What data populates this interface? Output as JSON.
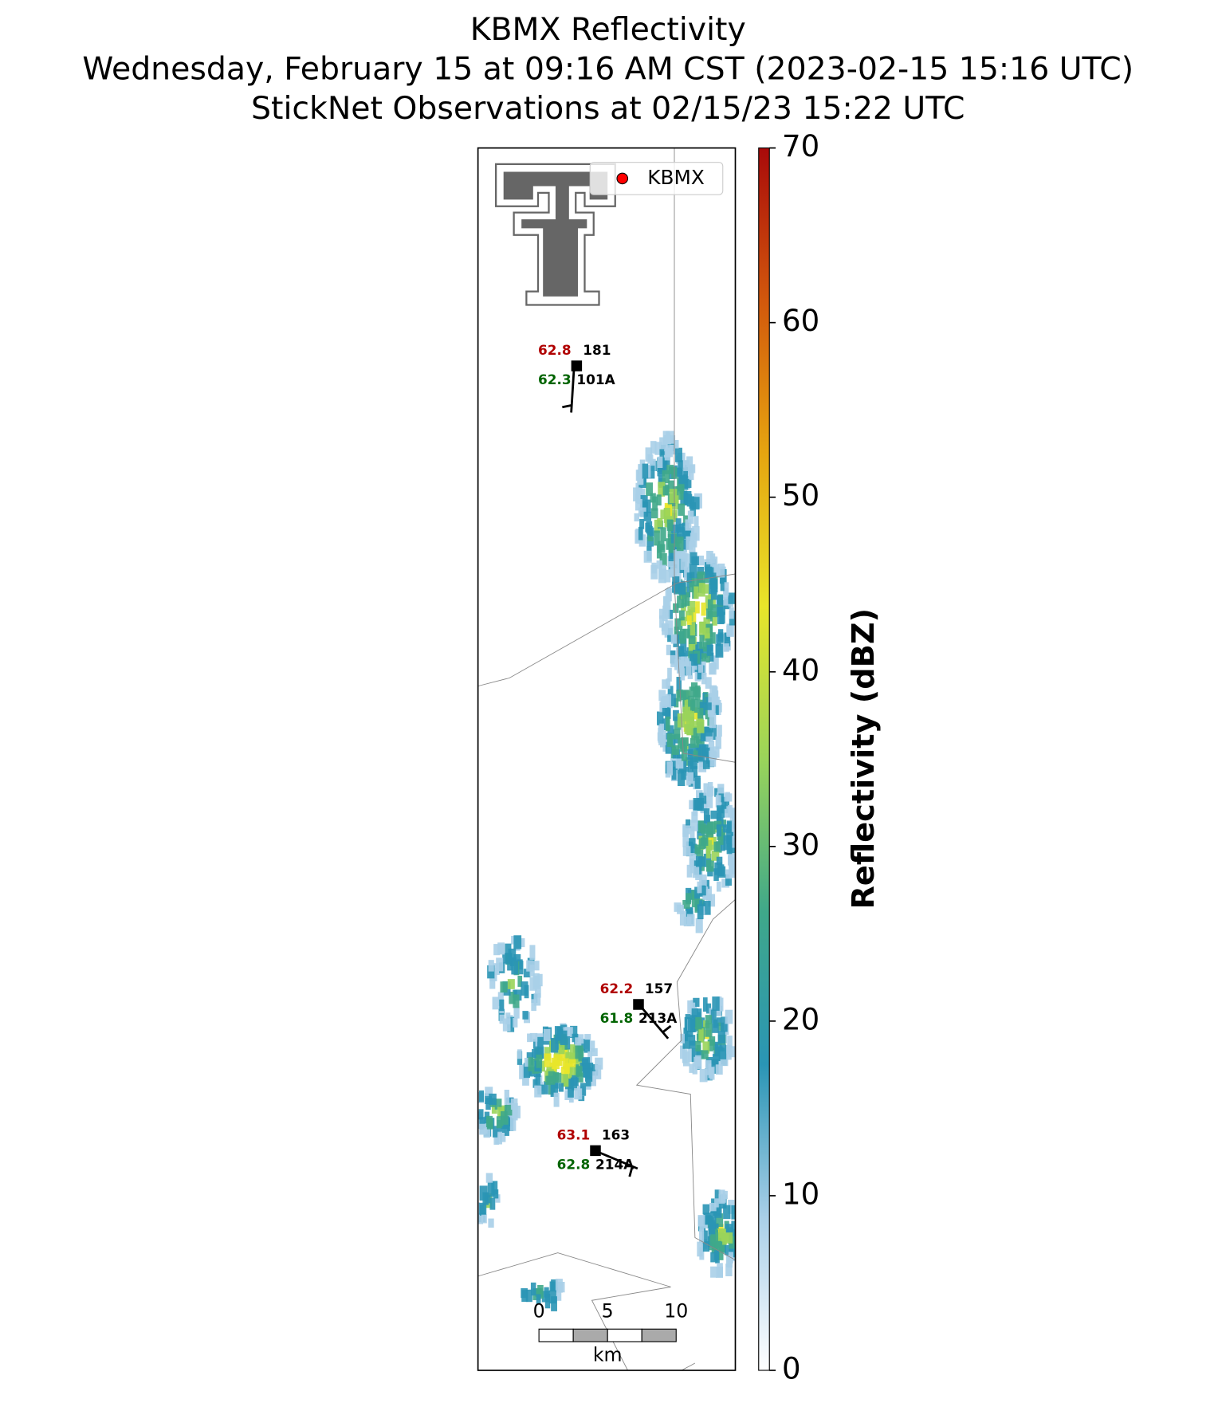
{
  "chart_data": {
    "type": "radar",
    "title": [
      "KBMX Reflectivity",
      "Wednesday, February 15 at 09:16 AM CST (2023-02-15 15:16 UTC)",
      "StickNet Observations at 02/15/23 15:22 UTC"
    ],
    "legend": "KBMX",
    "colorbar_label": "Reflectivity (dBZ)",
    "clim": [
      0,
      70
    ],
    "cticks": [
      0,
      10,
      20,
      30,
      40,
      50,
      60,
      70
    ],
    "colormap": [
      "#ffffff",
      "#a9cfe8",
      "#2a95b5",
      "#3fa88a",
      "#9ad45a",
      "#e8e52a",
      "#e6a510",
      "#d2580c",
      "#a80a0a"
    ],
    "stations": [
      {
        "id": "181",
        "name": "101A",
        "temperature": 62.8,
        "dewpoint": 62.3
      },
      {
        "id": "157",
        "name": "213A",
        "temperature": 62.2,
        "dewpoint": 61.8
      },
      {
        "id": "163",
        "name": "214A",
        "temperature": 63.1,
        "dewpoint": 62.8
      }
    ],
    "scale_ticks": [
      0,
      5,
      10
    ],
    "scale_unit": "km"
  }
}
